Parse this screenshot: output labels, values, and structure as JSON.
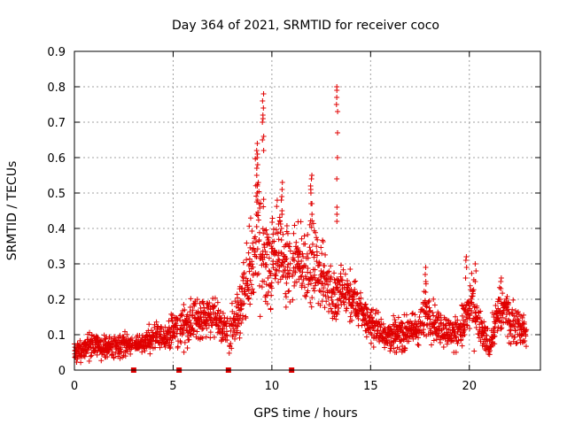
{
  "chart_data": {
    "type": "scatter",
    "title": "Day 364 of 2021, SRMTID for receiver coco",
    "xlabel": "GPS time / hours",
    "ylabel": "SRMTID / TECUs",
    "xlim": [
      0,
      23.6
    ],
    "ylim": [
      0,
      0.9
    ],
    "xticks": [
      0,
      5,
      10,
      15,
      20
    ],
    "yticks": [
      0,
      0.1,
      0.2,
      0.3,
      0.4,
      0.5,
      0.6,
      0.7,
      0.8,
      0.9
    ],
    "grid": true,
    "marker": "plus",
    "color": "#e00000",
    "data_gaps_hours": [
      3.0,
      5.3,
      7.8,
      11.0
    ],
    "envelope": {
      "t": [
        0.0,
        0.3,
        0.6,
        1.0,
        1.5,
        2.0,
        2.5,
        3.0,
        3.5,
        4.0,
        4.5,
        5.0,
        5.5,
        6.0,
        6.5,
        7.0,
        7.5,
        7.8,
        8.0,
        8.5,
        9.0,
        9.2,
        9.5,
        9.7,
        10.0,
        10.3,
        10.6,
        11.0,
        11.5,
        12.0,
        12.3,
        12.7,
        13.0,
        13.3,
        13.6,
        14.0,
        14.5,
        15.0,
        15.5,
        16.0,
        16.5,
        17.0,
        17.5,
        17.9,
        18.3,
        18.8,
        19.3,
        19.8,
        20.1,
        20.5,
        21.0,
        21.4,
        21.8,
        22.2,
        22.5,
        22.9
      ],
      "center": [
        0.05,
        0.05,
        0.07,
        0.07,
        0.06,
        0.07,
        0.07,
        0.07,
        0.08,
        0.09,
        0.09,
        0.11,
        0.12,
        0.14,
        0.15,
        0.15,
        0.12,
        0.1,
        0.12,
        0.18,
        0.3,
        0.4,
        0.34,
        0.3,
        0.32,
        0.36,
        0.3,
        0.28,
        0.3,
        0.3,
        0.28,
        0.26,
        0.22,
        0.2,
        0.22,
        0.2,
        0.17,
        0.13,
        0.11,
        0.1,
        0.1,
        0.11,
        0.12,
        0.17,
        0.13,
        0.11,
        0.1,
        0.14,
        0.18,
        0.12,
        0.07,
        0.15,
        0.17,
        0.13,
        0.13,
        0.1
      ],
      "spread": [
        0.02,
        0.03,
        0.04,
        0.03,
        0.03,
        0.03,
        0.03,
        0.02,
        0.03,
        0.03,
        0.03,
        0.04,
        0.05,
        0.05,
        0.05,
        0.05,
        0.05,
        0.04,
        0.05,
        0.08,
        0.14,
        0.18,
        0.16,
        0.12,
        0.12,
        0.11,
        0.1,
        0.09,
        0.09,
        0.1,
        0.09,
        0.08,
        0.07,
        0.07,
        0.07,
        0.06,
        0.05,
        0.04,
        0.04,
        0.04,
        0.04,
        0.04,
        0.05,
        0.07,
        0.05,
        0.04,
        0.04,
        0.06,
        0.08,
        0.05,
        0.03,
        0.06,
        0.06,
        0.05,
        0.05,
        0.03
      ]
    },
    "peaks": [
      {
        "t": 9.25,
        "values": [
          0.55,
          0.58,
          0.6,
          0.62,
          0.64,
          0.61,
          0.57,
          0.52,
          0.48,
          0.44
        ]
      },
      {
        "t": 9.55,
        "values": [
          0.62,
          0.66,
          0.7,
          0.72,
          0.74,
          0.76,
          0.78,
          0.71,
          0.65
        ]
      },
      {
        "t": 10.5,
        "values": [
          0.4,
          0.44,
          0.48,
          0.51,
          0.53,
          0.49,
          0.45
        ]
      },
      {
        "t": 12.0,
        "values": [
          0.44,
          0.47,
          0.5,
          0.52,
          0.54,
          0.55,
          0.51,
          0.47
        ]
      },
      {
        "t": 13.3,
        "values": [
          0.54,
          0.6,
          0.67,
          0.73,
          0.77,
          0.79,
          0.8,
          0.75,
          0.46,
          0.44,
          0.42
        ]
      },
      {
        "t": 17.8,
        "values": [
          0.22,
          0.25,
          0.27,
          0.29
        ]
      },
      {
        "t": 19.85,
        "values": [
          0.26,
          0.29,
          0.31,
          0.32
        ]
      },
      {
        "t": 20.3,
        "values": [
          0.25,
          0.28,
          0.3
        ]
      },
      {
        "t": 21.6,
        "values": [
          0.2,
          0.23,
          0.25,
          0.26
        ]
      }
    ]
  }
}
